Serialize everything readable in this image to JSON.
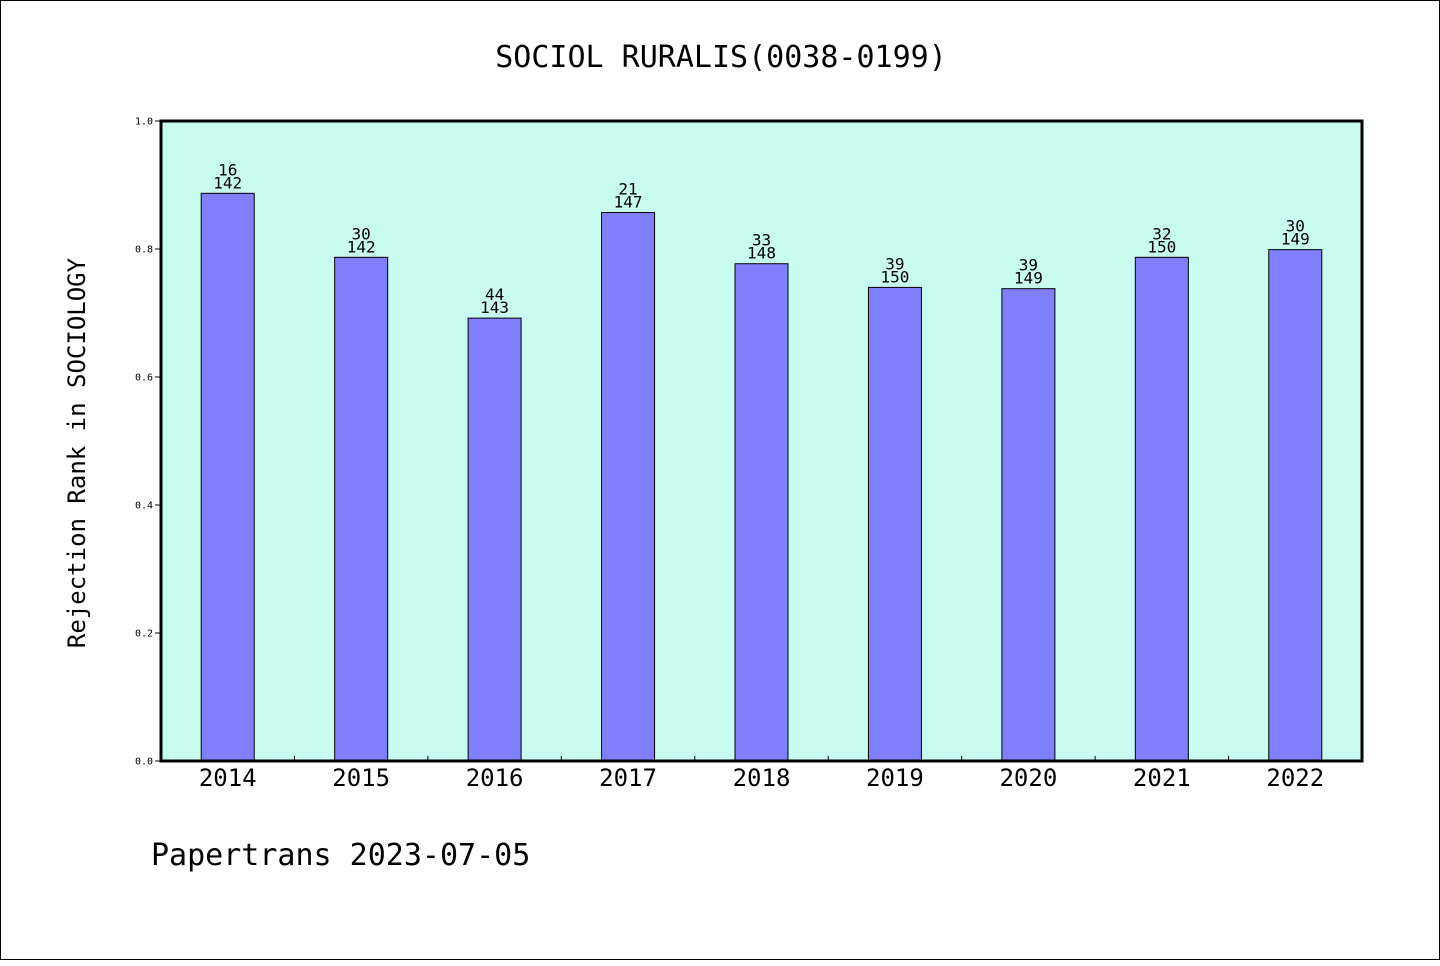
{
  "chart_data": {
    "type": "bar",
    "title": "SOCIOL RURALIS(0038-0199)",
    "xlabel": "",
    "ylabel": "Rejection Rank in SOCIOLOGY",
    "ylim": [
      0,
      1.0
    ],
    "yticks": [
      "0.0",
      "0.2",
      "0.4",
      "0.6",
      "0.8",
      "1.0"
    ],
    "categories": [
      "2014",
      "2015",
      "2016",
      "2017",
      "2018",
      "2019",
      "2020",
      "2021",
      "2022"
    ],
    "values": [
      0.887,
      0.787,
      0.692,
      0.857,
      0.777,
      0.74,
      0.738,
      0.787,
      0.799
    ],
    "rank_labels": [
      "16",
      "30",
      "44",
      "21",
      "33",
      "39",
      "39",
      "32",
      "30"
    ],
    "total_labels": [
      "142",
      "142",
      "143",
      "147",
      "148",
      "150",
      "149",
      "150",
      "149"
    ],
    "grid": false,
    "legend": "none",
    "colors": {
      "plot_background": "#c8fcef",
      "bar_fill": "#8080ff",
      "bar_stroke": "#000000"
    }
  },
  "footer": {
    "text": "Papertrans 2023-07-05"
  }
}
